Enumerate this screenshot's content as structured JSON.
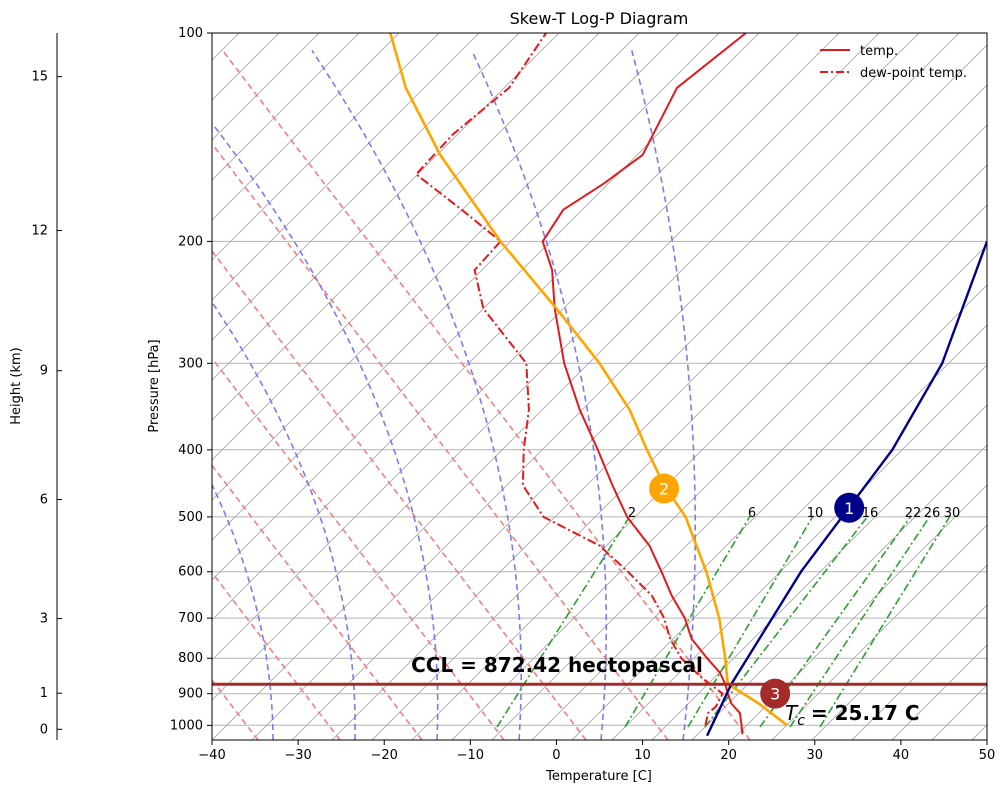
{
  "chart_data": {
    "type": "line",
    "title": "Skew-T Log-P Diagram",
    "xlabel": "Temperature [C]",
    "ylabel": "Pressure [hPa]",
    "height_axis_label": "Height (km)",
    "xlim": [
      -40,
      50
    ],
    "ylim_pressure": [
      1050,
      100
    ],
    "x_ticks": [
      -40,
      -30,
      -20,
      -10,
      0,
      10,
      20,
      30,
      40,
      50
    ],
    "pressure_ticks": [
      100,
      200,
      300,
      400,
      500,
      600,
      700,
      800,
      900,
      1000
    ],
    "height_ticks": [
      {
        "km": 0,
        "label": "0"
      },
      {
        "km": 1,
        "label": "1"
      },
      {
        "km": 3,
        "label": "3"
      },
      {
        "km": 6,
        "label": "6"
      },
      {
        "km": 9,
        "label": "9"
      },
      {
        "km": 12,
        "label": "12"
      },
      {
        "km": 15,
        "label": "15"
      }
    ],
    "grid": true,
    "legend": {
      "placement": "top-right",
      "entries": [
        {
          "label": "temp.",
          "color": "#e31a1c",
          "style": "solid"
        },
        {
          "label": "dew-point temp.",
          "color": "#e31a1c",
          "style": "dashdot"
        }
      ]
    },
    "series": [
      {
        "name": "temp.",
        "color": "#e31a1c",
        "style": "solid",
        "points": [
          {
            "p": 1030,
            "x": 21.6
          },
          {
            "p": 1000,
            "x": 21.5
          },
          {
            "p": 960,
            "x": 21.3
          },
          {
            "p": 930,
            "x": 20.3
          },
          {
            "p": 900,
            "x": 19.9
          },
          {
            "p": 872,
            "x": 19.6
          },
          {
            "p": 840,
            "x": 19.0
          },
          {
            "p": 800,
            "x": 17.5
          },
          {
            "p": 750,
            "x": 15.7
          },
          {
            "p": 700,
            "x": 14.9
          },
          {
            "p": 650,
            "x": 13.4
          },
          {
            "p": 600,
            "x": 12.2
          },
          {
            "p": 550,
            "x": 10.8
          },
          {
            "p": 500,
            "x": 8.2
          },
          {
            "p": 450,
            "x": 6.5
          },
          {
            "p": 400,
            "x": 4.8
          },
          {
            "p": 350,
            "x": 2.7
          },
          {
            "p": 300,
            "x": 0.9
          },
          {
            "p": 250,
            "x": -0.2
          },
          {
            "p": 220,
            "x": -0.5
          },
          {
            "p": 200,
            "x": -1.6
          },
          {
            "p": 180,
            "x": 0.8
          },
          {
            "p": 165,
            "x": 5.5
          },
          {
            "p": 150,
            "x": 10.0
          },
          {
            "p": 120,
            "x": 14.0
          },
          {
            "p": 100,
            "x": 22.0
          }
        ]
      },
      {
        "name": "dew-point temp.",
        "color": "#e31a1c",
        "style": "dashdot",
        "points": [
          {
            "p": 1000,
            "x": 17.3
          },
          {
            "p": 960,
            "x": 17.6
          },
          {
            "p": 940,
            "x": 18.5
          },
          {
            "p": 900,
            "x": 19.3
          },
          {
            "p": 850,
            "x": 16.7
          },
          {
            "p": 800,
            "x": 14.5
          },
          {
            "p": 750,
            "x": 13.2
          },
          {
            "p": 700,
            "x": 12.5
          },
          {
            "p": 650,
            "x": 11.1
          },
          {
            "p": 600,
            "x": 8.3
          },
          {
            "p": 550,
            "x": 5.0
          },
          {
            "p": 500,
            "x": -1.5
          },
          {
            "p": 450,
            "x": -3.9
          },
          {
            "p": 400,
            "x": -3.8
          },
          {
            "p": 350,
            "x": -3.2
          },
          {
            "p": 300,
            "x": -3.5
          },
          {
            "p": 250,
            "x": -8.5
          },
          {
            "p": 220,
            "x": -9.5
          },
          {
            "p": 200,
            "x": -6.5
          },
          {
            "p": 180,
            "x": -11.0
          },
          {
            "p": 160,
            "x": -16.3
          },
          {
            "p": 140,
            "x": -12.0
          },
          {
            "p": 120,
            "x": -5.5
          },
          {
            "p": 100,
            "x": -1.2
          }
        ]
      },
      {
        "name": "parcel",
        "color": "#ffa500",
        "style": "solid",
        "points": [
          {
            "p": 1000,
            "x": 26.8
          },
          {
            "p": 930,
            "x": 23.5
          },
          {
            "p": 872,
            "x": 19.9
          },
          {
            "p": 800,
            "x": 19.6
          },
          {
            "p": 700,
            "x": 18.9
          },
          {
            "p": 600,
            "x": 17.4
          },
          {
            "p": 500,
            "x": 15.0
          },
          {
            "p": 450,
            "x": 12.5
          },
          {
            "p": 400,
            "x": 10.5
          },
          {
            "p": 350,
            "x": 8.5
          },
          {
            "p": 300,
            "x": 5.0
          },
          {
            "p": 250,
            "x": 0.0
          },
          {
            "p": 200,
            "x": -6.5
          },
          {
            "p": 150,
            "x": -13.5
          },
          {
            "p": 120,
            "x": -17.5
          },
          {
            "p": 100,
            "x": -19.3
          }
        ]
      },
      {
        "name": "dry adiabat from Tc",
        "color": "#00008b",
        "style": "solid",
        "points": [
          {
            "p": 1035,
            "x": 17.5
          },
          {
            "p": 872,
            "x": 20.3
          },
          {
            "p": 600,
            "x": 28.4
          },
          {
            "p": 400,
            "x": 39.0
          },
          {
            "p": 300,
            "x": 44.8
          },
          {
            "p": 200,
            "x": 50.0
          }
        ]
      }
    ],
    "mixing_ratio_labels": [
      "2",
      "6",
      "10",
      "16",
      "22",
      "26",
      "30"
    ],
    "annotations": {
      "ccl_text": "CCL = 872.42 hectopascal",
      "ccl_pressure": 872.42,
      "tc_text": "= 25.17 C",
      "tc_symbol": "T",
      "tc_subscript": "c",
      "markers": [
        {
          "label": "1",
          "x": 34.0,
          "p": 485,
          "color": "#00008b"
        },
        {
          "label": "2",
          "x": 12.5,
          "p": 455,
          "color": "#ffa500"
        },
        {
          "label": "3",
          "x": 25.4,
          "p": 900,
          "color": "#a52a2a"
        }
      ]
    }
  }
}
